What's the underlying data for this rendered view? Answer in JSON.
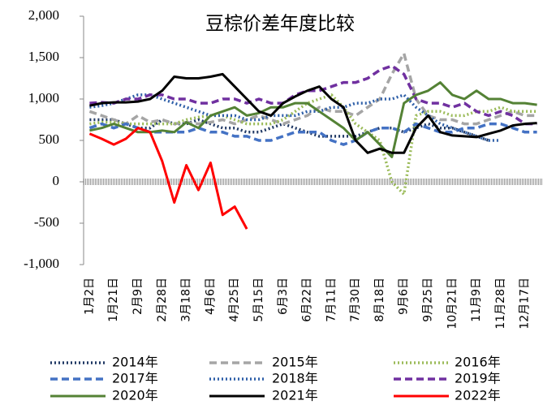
{
  "chart_data": {
    "type": "line",
    "title": "豆棕价差年度比较",
    "categories": [
      "1月2日",
      null,
      "1月21日",
      null,
      "2月9日",
      null,
      "2月28日",
      null,
      "3月18日",
      null,
      "4月6日",
      null,
      "4月25日",
      null,
      "5月15日",
      null,
      "6月3日",
      null,
      "6月22日",
      null,
      "7月11日",
      null,
      "7月30日",
      null,
      "8月18日",
      null,
      "9月6日",
      null,
      "9月25日",
      null,
      "10月21日",
      null,
      "11月9日",
      null,
      "11月28日",
      null,
      "12月17日",
      null
    ],
    "ylim": [
      -1000,
      2000
    ],
    "yticks": [
      {
        "value": -1000,
        "label": "-1,000"
      },
      -500,
      0,
      500,
      {
        "value": 1000,
        "label": "1,000"
      },
      {
        "value": 1500,
        "label": "1,500"
      },
      {
        "value": 2000,
        "label": "2,000"
      }
    ],
    "series": [
      {
        "name": "2014年",
        "color": "#1f3864",
        "dash": "dotted",
        "values": [
          750,
          750,
          750,
          700,
          650,
          650,
          750,
          700,
          700,
          750,
          700,
          650,
          650,
          600,
          600,
          650,
          700,
          650,
          600,
          550,
          550,
          550,
          550,
          600,
          650,
          650,
          600,
          650,
          700,
          650,
          650,
          600,
          550,
          500,
          null,
          null,
          null,
          null
        ]
      },
      {
        "name": "2015年",
        "color": "#a5a5a5",
        "dash": "dashed",
        "values": [
          850,
          800,
          750,
          700,
          800,
          720,
          750,
          700,
          720,
          700,
          720,
          750,
          700,
          750,
          800,
          750,
          700,
          750,
          800,
          900,
          850,
          850,
          800,
          900,
          1000,
          1300,
          1550,
          1000,
          800,
          750,
          750,
          700,
          700,
          750,
          800,
          850,
          800,
          800
        ]
      },
      {
        "name": "2016年",
        "color": "#9bbb59",
        "dash": "dotted",
        "values": [
          700,
          720,
          720,
          700,
          700,
          700,
          700,
          700,
          750,
          780,
          800,
          800,
          750,
          700,
          700,
          700,
          750,
          850,
          950,
          1000,
          1050,
          900,
          700,
          600,
          500,
          0,
          -150,
          800,
          850,
          850,
          800,
          800,
          850,
          850,
          900,
          850,
          850,
          850
        ]
      },
      {
        "name": "2017年",
        "color": "#4472c4",
        "dash": "dashed",
        "values": [
          650,
          700,
          650,
          700,
          650,
          600,
          600,
          600,
          600,
          650,
          600,
          600,
          550,
          550,
          500,
          500,
          550,
          600,
          600,
          600,
          500,
          450,
          500,
          600,
          650,
          650,
          600,
          700,
          650,
          600,
          600,
          650,
          650,
          700,
          700,
          650,
          600,
          600
        ]
      },
      {
        "name": "2018年",
        "color": "#2e5fa8",
        "dash": "dotted",
        "values": [
          900,
          920,
          950,
          1000,
          1050,
          1050,
          1000,
          950,
          900,
          850,
          800,
          800,
          800,
          750,
          750,
          800,
          800,
          800,
          850,
          850,
          900,
          900,
          950,
          950,
          1000,
          1000,
          1050,
          900,
          800,
          700,
          650,
          600,
          550,
          500,
          500,
          null,
          null,
          null
        ]
      },
      {
        "name": "2019年",
        "color": "#7030a0",
        "dash": "dashed",
        "values": [
          950,
          960,
          950,
          1000,
          1000,
          1050,
          1050,
          1000,
          1000,
          950,
          950,
          1000,
          1000,
          950,
          1000,
          950,
          950,
          1050,
          1100,
          1100,
          1150,
          1200,
          1200,
          1250,
          1350,
          1400,
          1300,
          1000,
          950,
          950,
          900,
          950,
          850,
          800,
          850,
          800,
          700,
          700
        ]
      },
      {
        "name": "2020年",
        "color": "#548235",
        "dash": "solid",
        "values": [
          620,
          650,
          700,
          650,
          600,
          600,
          620,
          600,
          720,
          650,
          800,
          850,
          900,
          800,
          830,
          900,
          900,
          950,
          950,
          850,
          750,
          650,
          500,
          600,
          450,
          300,
          950,
          1050,
          1100,
          1200,
          1050,
          1000,
          1100,
          1000,
          1000,
          950,
          950,
          930
        ]
      },
      {
        "name": "2021年",
        "color": "#000000",
        "dash": "solid",
        "values": [
          920,
          950,
          960,
          960,
          970,
          1000,
          1100,
          1270,
          1250,
          1250,
          1270,
          1300,
          1150,
          1000,
          850,
          800,
          950,
          1030,
          1100,
          1150,
          1000,
          900,
          500,
          350,
          400,
          350,
          350,
          650,
          800,
          600,
          560,
          550,
          540,
          580,
          620,
          680,
          700,
          710
        ]
      },
      {
        "name": "2022年",
        "color": "#ff0000",
        "dash": "solid",
        "values": [
          580,
          520,
          450,
          520,
          650,
          600,
          250,
          -250,
          200,
          -100,
          230,
          -400,
          -300,
          -570,
          null,
          null,
          null,
          null,
          null,
          null,
          null,
          null,
          null,
          null,
          null,
          null,
          null,
          null,
          null,
          null,
          null,
          null,
          null,
          null,
          null,
          null,
          null,
          null
        ]
      }
    ]
  }
}
